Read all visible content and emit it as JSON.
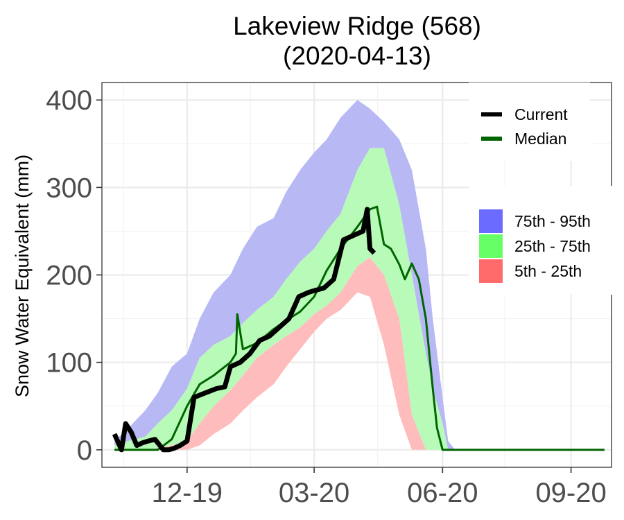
{
  "chart_data": {
    "type": "area",
    "title": "Lakeview Ridge (568)",
    "subtitle": "(2020-04-13)",
    "xlabel": "",
    "ylabel": "Snow Water Equivalent (mm)",
    "ylim": [
      -20,
      420
    ],
    "xlim": [
      "2019-10-01",
      "2020-09-30"
    ],
    "x_ticks": [
      {
        "label": "12-19",
        "date": "2019-12-01"
      },
      {
        "label": "03-20",
        "date": "2020-03-01"
      },
      {
        "label": "06-20",
        "date": "2020-06-01"
      },
      {
        "label": "09-20",
        "date": "2020-09-01"
      }
    ],
    "y_ticks": [
      {
        "label": "0",
        "value": 0
      },
      {
        "label": "100",
        "value": 100
      },
      {
        "label": "200",
        "value": 200
      },
      {
        "label": "300",
        "value": 300
      },
      {
        "label": "400",
        "value": 400
      }
    ],
    "grid": true,
    "legend": {
      "placement": "right",
      "lines": [
        {
          "name": "Current",
          "color": "#000000"
        },
        {
          "name": "Median",
          "color": "#006400"
        }
      ],
      "bands": [
        {
          "name": "75th - 95th",
          "color": "#6b6bff"
        },
        {
          "name": "25th - 75th",
          "color": "#66ff66"
        },
        {
          "name": "5th - 25th",
          "color": "#ff6b6b"
        }
      ]
    },
    "band_colors": {
      "p75_p95": "#b8b8f5",
      "p25_p75": "#b8fbb8",
      "p5_p25": "#ffbcbc"
    },
    "percentile_bands": {
      "x": [
        "2019-10-10",
        "2019-10-20",
        "2019-11-01",
        "2019-11-10",
        "2019-11-20",
        "2019-12-01",
        "2019-12-10",
        "2019-12-20",
        "2020-01-01",
        "2020-01-10",
        "2020-01-20",
        "2020-02-01",
        "2020-02-10",
        "2020-02-20",
        "2020-03-01",
        "2020-03-10",
        "2020-03-20",
        "2020-04-01",
        "2020-04-10",
        "2020-04-20",
        "2020-05-01",
        "2020-05-10",
        "2020-05-20",
        "2020-05-25",
        "2020-06-01",
        "2020-06-05",
        "2020-06-10",
        "2020-06-20",
        "2020-07-01",
        "2020-09-25"
      ],
      "p5": [
        0,
        0,
        0,
        0,
        0,
        0,
        5,
        18,
        30,
        45,
        60,
        75,
        95,
        115,
        135,
        150,
        160,
        180,
        175,
        120,
        40,
        0,
        0,
        0,
        0,
        0,
        0,
        0,
        0,
        0
      ],
      "p25": [
        0,
        0,
        0,
        2,
        5,
        10,
        30,
        50,
        68,
        85,
        105,
        120,
        130,
        140,
        155,
        165,
        180,
        210,
        220,
        200,
        150,
        40,
        0,
        0,
        0,
        0,
        0,
        0,
        0,
        0
      ],
      "p75": [
        5,
        10,
        15,
        30,
        45,
        70,
        105,
        120,
        130,
        145,
        160,
        175,
        195,
        215,
        230,
        250,
        270,
        320,
        345,
        345,
        280,
        200,
        110,
        70,
        30,
        0,
        0,
        0,
        0,
        0
      ],
      "p95": [
        10,
        25,
        45,
        65,
        95,
        110,
        150,
        180,
        200,
        230,
        255,
        265,
        295,
        320,
        340,
        355,
        380,
        400,
        390,
        375,
        355,
        320,
        230,
        150,
        60,
        10,
        0,
        0,
        0,
        0
      ]
    },
    "series": [
      {
        "name": "Median",
        "color": "#006400",
        "x": [
          "2019-10-10",
          "2019-10-20",
          "2019-11-01",
          "2019-11-10",
          "2019-11-20",
          "2019-12-01",
          "2019-12-10",
          "2019-12-20",
          "2020-01-01",
          "2020-01-05",
          "2020-01-06",
          "2020-01-10",
          "2020-01-20",
          "2020-02-01",
          "2020-02-10",
          "2020-02-20",
          "2020-03-01",
          "2020-03-10",
          "2020-03-20",
          "2020-04-01",
          "2020-04-10",
          "2020-04-15",
          "2020-04-20",
          "2020-04-25",
          "2020-05-01",
          "2020-05-05",
          "2020-05-10",
          "2020-05-15",
          "2020-05-20",
          "2020-05-25",
          "2020-05-28",
          "2020-06-01",
          "2020-07-01",
          "2020-09-25"
        ],
        "values": [
          0,
          0,
          0,
          0,
          12,
          50,
          75,
          85,
          100,
          110,
          155,
          115,
          122,
          138,
          148,
          158,
          175,
          205,
          230,
          255,
          275,
          278,
          235,
          230,
          212,
          195,
          213,
          195,
          150,
          70,
          25,
          0,
          0,
          0
        ]
      },
      {
        "name": "Current",
        "color": "#000000",
        "x": [
          "2019-10-10",
          "2019-10-15",
          "2019-10-18",
          "2019-10-22",
          "2019-10-26",
          "2019-10-30",
          "2019-11-03",
          "2019-11-08",
          "2019-11-14",
          "2019-11-18",
          "2019-11-22",
          "2019-11-26",
          "2019-11-29",
          "2019-12-01",
          "2019-12-06",
          "2019-12-14",
          "2019-12-22",
          "2019-12-28",
          "2020-01-01",
          "2020-01-08",
          "2020-01-15",
          "2020-01-22",
          "2020-01-29",
          "2020-02-05",
          "2020-02-12",
          "2020-02-19",
          "2020-02-26",
          "2020-03-01",
          "2020-03-08",
          "2020-03-15",
          "2020-03-22",
          "2020-03-29",
          "2020-04-05",
          "2020-04-08",
          "2020-04-10",
          "2020-04-13"
        ],
        "values": [
          18,
          0,
          30,
          20,
          5,
          8,
          10,
          12,
          0,
          0,
          2,
          5,
          8,
          10,
          60,
          65,
          70,
          72,
          95,
          100,
          110,
          125,
          130,
          140,
          150,
          175,
          180,
          182,
          185,
          195,
          240,
          245,
          250,
          275,
          230,
          225
        ]
      }
    ]
  }
}
